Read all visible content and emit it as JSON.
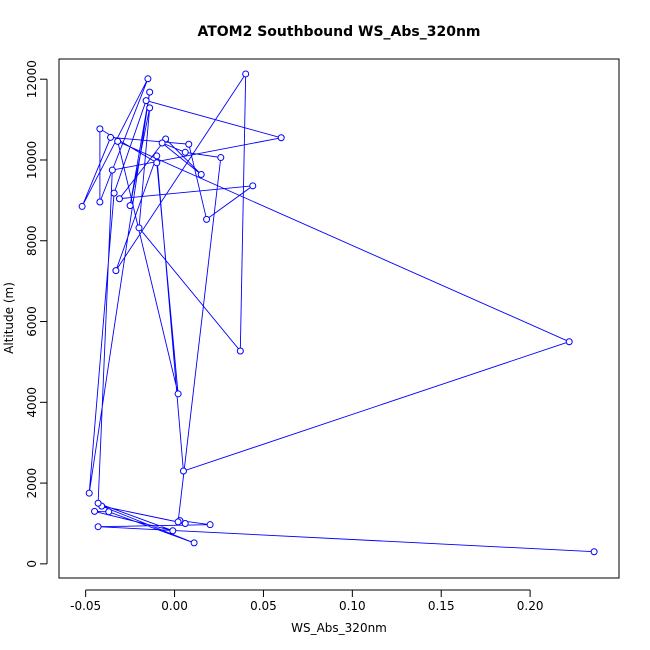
{
  "chart_data": {
    "type": "line",
    "title": "ATOM2 Southbound WS_Abs_320nm",
    "xlabel": "WS_Abs_320nm",
    "ylabel": "Altitude (m)",
    "xlim": [
      -0.065,
      0.25
    ],
    "ylim": [
      -350,
      12500
    ],
    "xticks": [
      -0.05,
      0.0,
      0.05,
      0.1,
      0.15,
      0.2
    ],
    "xtick_labels": [
      "-0.05",
      "0.00",
      "0.05",
      "0.10",
      "0.15",
      "0.20"
    ],
    "yticks": [
      0,
      2000,
      4000,
      6000,
      8000,
      10000,
      12000
    ],
    "ytick_labels": [
      "0",
      "2000",
      "4000",
      "6000",
      "8000",
      "10000",
      "12000"
    ],
    "grid": false,
    "legend": "none",
    "series": [
      {
        "color": "#0000ff",
        "marker": "open-circle",
        "points": [
          {
            "x": 0.236,
            "y": 300
          },
          {
            "x": -0.043,
            "y": 920
          },
          {
            "x": 0.02,
            "y": 970
          },
          {
            "x": 0.003,
            "y": 1070
          },
          {
            "x": 0.006,
            "y": 1000
          },
          {
            "x": -0.041,
            "y": 1430
          },
          {
            "x": 0.011,
            "y": 520
          },
          {
            "x": -0.037,
            "y": 1290
          },
          {
            "x": -0.045,
            "y": 1300
          },
          {
            "x": -0.001,
            "y": 820
          },
          {
            "x": -0.043,
            "y": 1500
          },
          {
            "x": -0.035,
            "y": 9750
          },
          {
            "x": 0.06,
            "y": 10550
          },
          {
            "x": -0.016,
            "y": 11470
          },
          {
            "x": -0.034,
            "y": 9180
          },
          {
            "x": -0.048,
            "y": 1750
          },
          {
            "x": -0.014,
            "y": 11680
          },
          {
            "x": -0.025,
            "y": 8870
          },
          {
            "x": -0.014,
            "y": 11290
          },
          {
            "x": -0.02,
            "y": 8320
          },
          {
            "x": 0.037,
            "y": 5270
          },
          {
            "x": 0.04,
            "y": 12130
          },
          {
            "x": -0.033,
            "y": 7260
          },
          {
            "x": -0.01,
            "y": 10100
          },
          {
            "x": 0.005,
            "y": 2300
          },
          {
            "x": 0.222,
            "y": 5500
          },
          {
            "x": -0.032,
            "y": 10460
          },
          {
            "x": 0.002,
            "y": 4210
          },
          {
            "x": -0.01,
            "y": 9930
          },
          {
            "x": -0.042,
            "y": 10770
          },
          {
            "x": -0.042,
            "y": 8960
          },
          {
            "x": -0.015,
            "y": 12010
          },
          {
            "x": -0.052,
            "y": 8850
          },
          {
            "x": -0.036,
            "y": 10560
          },
          {
            "x": 0.008,
            "y": 10390
          },
          {
            "x": 0.018,
            "y": 8530
          },
          {
            "x": 0.044,
            "y": 9360
          },
          {
            "x": -0.031,
            "y": 9040
          },
          {
            "x": -0.005,
            "y": 10520
          },
          {
            "x": 0.015,
            "y": 9640
          },
          {
            "x": -0.007,
            "y": 10420
          },
          {
            "x": 0.006,
            "y": 10190
          },
          {
            "x": 0.026,
            "y": 10060
          },
          {
            "x": 0.002,
            "y": 1040
          }
        ]
      }
    ]
  }
}
